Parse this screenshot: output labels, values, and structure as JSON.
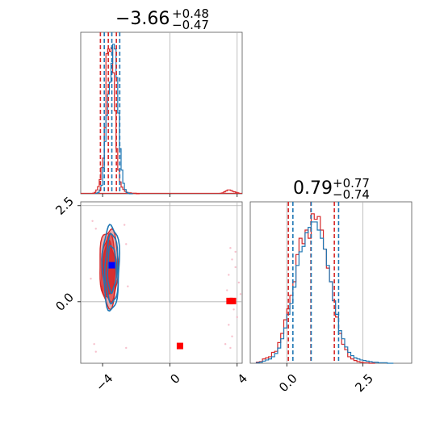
{
  "chart_data": {
    "type": "corner",
    "colors": {
      "red": "#d62728",
      "blue": "#1f77b4",
      "grid": "#b0b0b0"
    },
    "panels": [
      {
        "id": "param1-histogram",
        "type": "histogram",
        "title": {
          "main": "−3.66",
          "sup": "+0.48",
          "sub": "−0.47"
        },
        "xlim": [
          -5.3,
          4.3
        ],
        "xgrid": [
          0,
          4
        ],
        "red": {
          "quantiles": [
            -4.13,
            -3.66,
            -3.18
          ],
          "bins_x": [
            -4.6,
            -4.5,
            -4.4,
            -4.3,
            -4.2,
            -4.1,
            -4.0,
            -3.9,
            -3.8,
            -3.7,
            -3.6,
            -3.5,
            -3.4,
            -3.3,
            -3.2,
            -3.1,
            -3.0,
            -2.9,
            -2.8,
            -2.7,
            -2.6,
            -2.5,
            -2.4,
            -2.3,
            -2.2,
            -2.1,
            -2.0,
            -1.9
          ],
          "counts": [
            1,
            3,
            8,
            15,
            30,
            55,
            75,
            140,
            295,
            305,
            300,
            308,
            255,
            175,
            95,
            50,
            25,
            14,
            9,
            5,
            3,
            2,
            2,
            1,
            1,
            1,
            0,
            0
          ],
          "outlier_bins_x": [
            3.0,
            3.1,
            3.2,
            3.3,
            3.4,
            3.5,
            3.6,
            3.7,
            3.8,
            3.9,
            4.0
          ],
          "outlier_counts": [
            1,
            2,
            4,
            6,
            8,
            8,
            7,
            5,
            4,
            3,
            2
          ]
        },
        "blue": {
          "quantiles": [
            -3.9,
            -3.45,
            -2.98
          ],
          "bins_x": [
            -4.4,
            -4.3,
            -4.2,
            -4.1,
            -4.0,
            -3.9,
            -3.8,
            -3.7,
            -3.6,
            -3.5,
            -3.4,
            -3.3,
            -3.2,
            -3.1,
            -3.0,
            -2.9,
            -2.8,
            -2.7,
            -2.6,
            -2.5,
            -2.4,
            -2.3
          ],
          "counts": [
            1,
            3,
            8,
            18,
            55,
            110,
            165,
            210,
            235,
            275,
            315,
            305,
            245,
            170,
            95,
            50,
            22,
            9,
            3,
            1,
            0,
            0
          ]
        }
      },
      {
        "id": "param2-histogram",
        "type": "histogram",
        "title": {
          "main": "0.79",
          "sup": "+0.77",
          "sub": "−0.74"
        },
        "xlim": [
          -1.2,
          4.1
        ],
        "xticks": [
          0.0,
          2.5
        ],
        "xticklabels": [
          "0.0",
          "2.5"
        ],
        "xgrid": [
          0.0,
          2.5
        ],
        "red": {
          "quantiles": [
            0.05,
            0.79,
            1.56
          ],
          "bins_x": [
            -1.0,
            -0.9,
            -0.8,
            -0.7,
            -0.6,
            -0.5,
            -0.4,
            -0.3,
            -0.2,
            -0.1,
            0.0,
            0.1,
            0.2,
            0.3,
            0.4,
            0.5,
            0.6,
            0.7,
            0.8,
            0.9,
            1.0,
            1.1,
            1.2,
            1.3,
            1.4,
            1.5,
            1.6,
            1.7,
            1.8,
            1.9,
            2.0,
            2.1,
            2.2,
            2.3,
            2.4,
            2.5,
            2.6,
            2.7,
            2.8
          ],
          "counts": [
            2,
            3,
            8,
            10,
            12,
            20,
            22,
            38,
            55,
            80,
            100,
            125,
            150,
            200,
            230,
            220,
            245,
            230,
            275,
            265,
            270,
            245,
            210,
            175,
            150,
            115,
            85,
            55,
            35,
            25,
            12,
            8,
            5,
            3,
            2,
            1,
            1,
            0,
            0
          ]
        },
        "blue": {
          "quantiles": [
            0.2,
            0.8,
            1.7
          ],
          "bins_x": [
            -1.0,
            -0.9,
            -0.8,
            -0.7,
            -0.6,
            -0.5,
            -0.4,
            -0.3,
            -0.2,
            -0.1,
            0.0,
            0.1,
            0.2,
            0.3,
            0.4,
            0.5,
            0.6,
            0.7,
            0.8,
            0.9,
            1.0,
            1.1,
            1.2,
            1.3,
            1.4,
            1.5,
            1.6,
            1.7,
            1.8,
            1.9,
            2.0,
            2.1,
            2.2,
            2.3,
            2.4,
            2.5,
            2.6,
            2.7,
            2.8,
            2.9,
            3.0,
            3.1,
            3.2,
            3.3,
            3.4
          ],
          "counts": [
            1,
            2,
            4,
            6,
            8,
            12,
            18,
            28,
            45,
            65,
            90,
            110,
            140,
            180,
            205,
            215,
            240,
            250,
            260,
            260,
            245,
            230,
            210,
            180,
            150,
            115,
            90,
            60,
            45,
            30,
            20,
            14,
            10,
            8,
            6,
            5,
            4,
            3,
            2,
            2,
            1,
            1,
            1,
            0,
            0
          ]
        }
      },
      {
        "id": "param1-vs-param2",
        "type": "contour2d",
        "xlim": [
          -5.3,
          4.3
        ],
        "ylim": [
          -1.6,
          2.6
        ],
        "xticks": [
          -4,
          0,
          4
        ],
        "xticklabels": [
          "−4",
          "0",
          "4"
        ],
        "yticks": [
          0.0,
          2.5
        ],
        "yticklabels": [
          "0.0",
          "2.5"
        ],
        "xgrid": [
          0,
          4
        ],
        "ygrid": [
          0.0,
          2.5
        ],
        "red_contours": [
          {
            "center": [
              -3.62,
              0.9
            ],
            "radii": [
              0.55,
              1.0
            ],
            "fill": "#e8a0a0"
          },
          {
            "center": [
              -3.62,
              0.85
            ],
            "radii": [
              0.45,
              0.85
            ],
            "fill": "#dd5555"
          },
          {
            "center": [
              -3.62,
              0.85
            ],
            "radii": [
              0.35,
              0.7
            ],
            "fill": "#d62728"
          }
        ],
        "blue_contours": [
          {
            "center": [
              -3.5,
              0.9
            ],
            "radii": [
              0.5,
              1.1
            ]
          },
          {
            "center": [
              -3.45,
              0.85
            ],
            "radii": [
              0.38,
              0.9
            ]
          },
          {
            "center": [
              -3.45,
              0.85
            ],
            "radii": [
              0.25,
              0.6
            ]
          }
        ],
        "red_markers": [
          [
            0.6,
            -1.15
          ],
          [
            3.55,
            0.02
          ],
          [
            3.75,
            0.02
          ]
        ],
        "blue_marker": [
          -3.45,
          0.95
        ],
        "scatter_points": [
          [
            3.6,
            1.4
          ],
          [
            3.7,
            1.1
          ],
          [
            3.9,
            0.9
          ],
          [
            3.5,
            0.7
          ],
          [
            4.1,
            0.5
          ],
          [
            3.4,
            0.3
          ],
          [
            3.8,
            -0.2
          ],
          [
            4.0,
            -0.4
          ],
          [
            3.5,
            -0.6
          ],
          [
            3.7,
            -0.9
          ],
          [
            3.3,
            -1.1
          ],
          [
            3.9,
            1.3
          ],
          [
            4.2,
            0.2
          ],
          [
            3.6,
            -1.2
          ],
          [
            -4.6,
            2.1
          ],
          [
            -4.4,
            1.9
          ],
          [
            -2.7,
            2.0
          ],
          [
            -2.6,
            -1.2
          ],
          [
            -4.5,
            -1.1
          ],
          [
            -2.5,
            0.4
          ],
          [
            -4.7,
            0.6
          ],
          [
            -2.6,
            1.5
          ],
          [
            -4.4,
            -1.3
          ]
        ]
      }
    ]
  }
}
